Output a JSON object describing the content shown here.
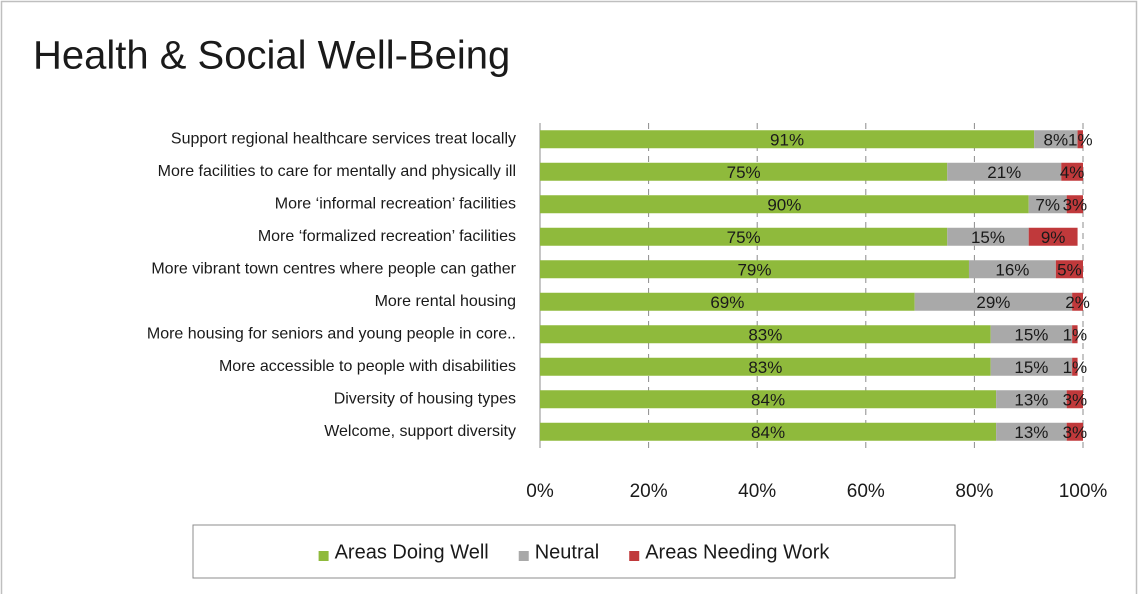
{
  "chart_data": {
    "type": "stacked-bar-horizontal",
    "title": "Health & Social Well-Being",
    "categories": [
      "Support regional healthcare services  treat locally",
      "More facilities to care for mentally and physically ill",
      "More ‘informal recreation’ facilities",
      "More ‘formalized recreation’ facilities",
      "More vibrant town centres where people can gather",
      "More rental housing",
      "More housing for seniors and young people in core..",
      "More accessible to people with disabilities",
      "Diversity of housing types",
      "Welcome, support diversity"
    ],
    "series": [
      {
        "name": "Areas Doing Well",
        "color": "#8fba3c",
        "values": [
          91,
          75,
          90,
          75,
          79,
          69,
          83,
          83,
          84,
          84
        ],
        "value_labels": [
          "91%",
          "75%",
          "90%",
          "75%",
          "79%",
          "69%",
          "83%",
          "83%",
          "84%",
          "84%"
        ]
      },
      {
        "name": "Neutral",
        "color": "#a9a9a9",
        "values": [
          8,
          21,
          7,
          15,
          16,
          29,
          15,
          15,
          13,
          13
        ],
        "value_labels": [
          "8%",
          "21%",
          "7%",
          "15%",
          "16%",
          "29%",
          "15%",
          "15%",
          "13%",
          "13%"
        ]
      },
      {
        "name": "Areas Needing Work",
        "color": "#c0393b",
        "values": [
          1,
          4,
          3,
          9,
          5,
          2,
          1,
          1,
          3,
          3
        ],
        "value_labels": [
          "1%",
          "4%",
          "3%",
          "9%",
          "5%",
          "2%",
          "1%",
          "1%",
          "3%",
          "3%"
        ]
      }
    ],
    "xlim": [
      0,
      100
    ],
    "xticks": [
      {
        "value": 0,
        "label": "0%"
      },
      {
        "value": 20,
        "label": "20%"
      },
      {
        "value": 40,
        "label": "40%"
      },
      {
        "value": 60,
        "label": "60%"
      },
      {
        "value": 80,
        "label": "80%"
      },
      {
        "value": 100,
        "label": "100%"
      }
    ],
    "grid": true,
    "legend": "bottom"
  }
}
